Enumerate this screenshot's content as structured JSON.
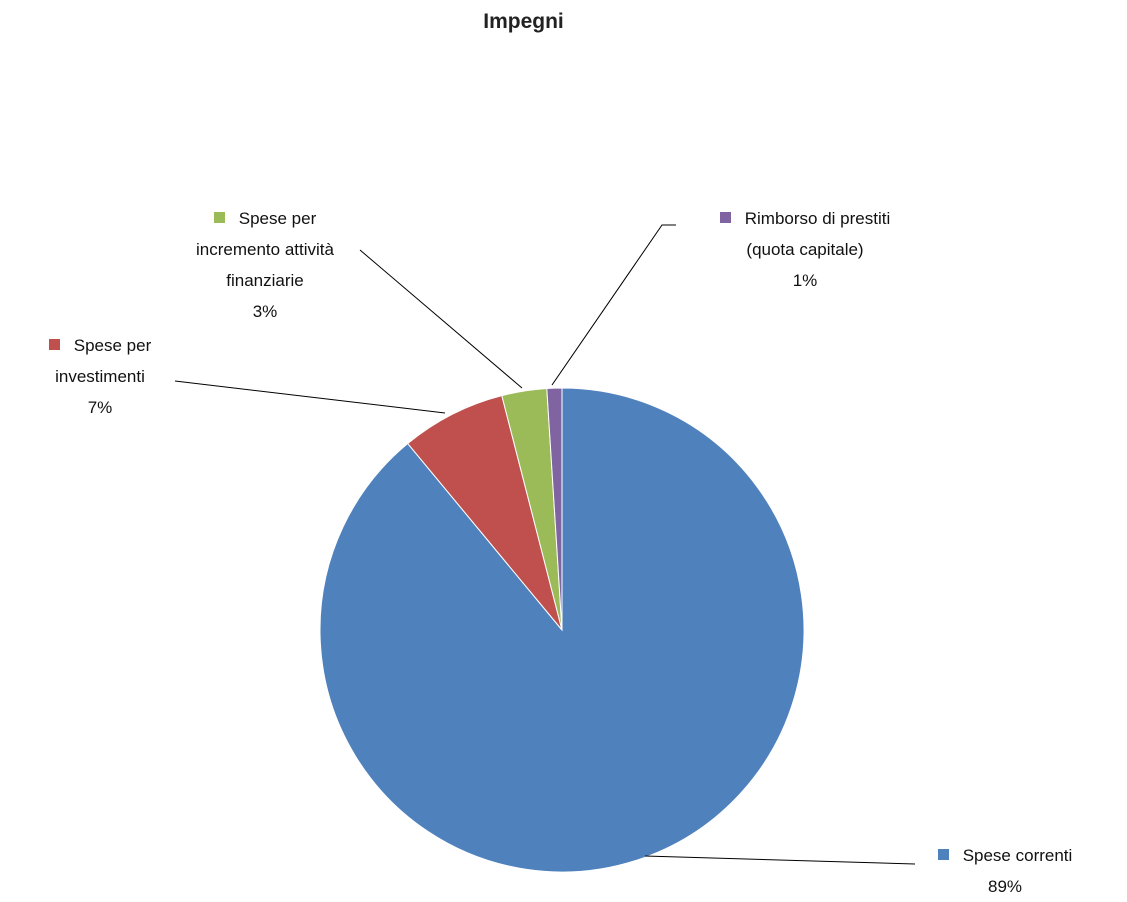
{
  "chart_data": {
    "type": "pie",
    "title": "Impegni",
    "categories": [
      "Spese correnti",
      "Spese per investimenti",
      "Spese per incremento attività finanziarie",
      "Rimborso di prestiti (quota capitale)"
    ],
    "values": [
      89,
      7,
      3,
      1
    ],
    "value_labels": [
      "89%",
      "7%",
      "3%",
      "1%"
    ],
    "colors": [
      "#4f81bd",
      "#c0504d",
      "#9bbb59",
      "#8064a2"
    ]
  }
}
